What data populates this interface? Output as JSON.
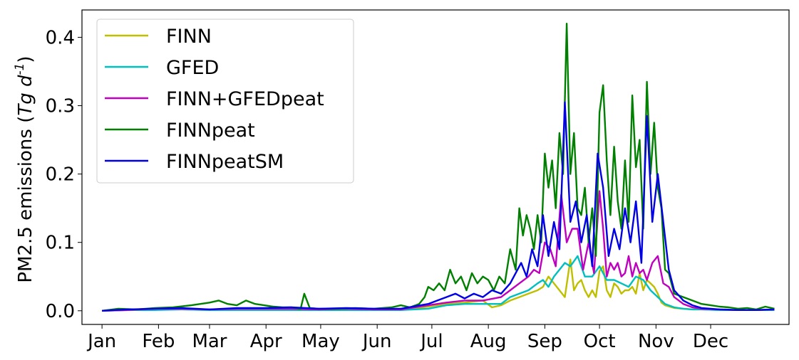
{
  "chart_data": {
    "type": "line",
    "title": "",
    "xlabel": "",
    "ylabel": "PM2.5 emissions (",
    "ylabel_italic": "Tg d",
    "ylabel_exp": "-1",
    "ylabel_close": ")",
    "ylim": [
      -0.02,
      0.44
    ],
    "yticks": [
      0.0,
      0.1,
      0.2,
      0.3,
      0.4
    ],
    "ytick_labels": [
      "0.0",
      "0.1",
      "0.2",
      "0.3",
      "0.4"
    ],
    "xlim": [
      -10,
      378
    ],
    "xticks": [
      1,
      32,
      60,
      91,
      121,
      152,
      182,
      213,
      244,
      274,
      305,
      335
    ],
    "xtick_labels": [
      "Jan",
      "Feb",
      "Mar",
      "Apr",
      "May",
      "Jun",
      "Jul",
      "Aug",
      "Sep",
      "Oct",
      "Nov",
      "Dec"
    ],
    "grid": false,
    "legend_position": "top-left",
    "series": [
      {
        "name": "FINN",
        "color": "#bfbf00",
        "x": [
          1,
          15,
          30,
          45,
          60,
          75,
          90,
          105,
          120,
          135,
          150,
          165,
          180,
          190,
          200,
          210,
          215,
          220,
          225,
          230,
          235,
          240,
          243,
          246,
          249,
          252,
          255,
          258,
          260,
          262,
          264,
          266,
          268,
          270,
          272,
          274,
          276,
          278,
          280,
          282,
          284,
          286,
          288,
          290,
          292,
          294,
          296,
          298,
          300,
          302,
          304,
          306,
          308,
          310,
          315,
          320,
          325,
          330,
          340,
          350,
          360,
          370
        ],
        "values": [
          0.0,
          0.001,
          0.002,
          0.002,
          0.001,
          0.002,
          0.001,
          0.002,
          0.001,
          0.002,
          0.001,
          0.001,
          0.006,
          0.01,
          0.012,
          0.015,
          0.005,
          0.008,
          0.015,
          0.02,
          0.025,
          0.03,
          0.035,
          0.05,
          0.04,
          0.03,
          0.02,
          0.075,
          0.03,
          0.04,
          0.045,
          0.03,
          0.02,
          0.03,
          0.02,
          0.058,
          0.065,
          0.03,
          0.02,
          0.04,
          0.035,
          0.025,
          0.03,
          0.03,
          0.035,
          0.025,
          0.055,
          0.03,
          0.045,
          0.04,
          0.035,
          0.025,
          0.012,
          0.008,
          0.004,
          0.003,
          0.002,
          0.002,
          0.001,
          0.001,
          0.001,
          0.002
        ]
      },
      {
        "name": "GFED",
        "color": "#00bfbf",
        "x": [
          1,
          15,
          30,
          45,
          60,
          75,
          90,
          105,
          120,
          135,
          150,
          165,
          180,
          190,
          200,
          210,
          220,
          225,
          230,
          235,
          240,
          243,
          246,
          249,
          252,
          255,
          258,
          262,
          266,
          270,
          274,
          278,
          282,
          286,
          290,
          294,
          298,
          302,
          306,
          310,
          315,
          320,
          325,
          330,
          340,
          350,
          360,
          370
        ],
        "values": [
          0.0,
          0.001,
          0.001,
          0.002,
          0.001,
          0.001,
          0.001,
          0.001,
          0.001,
          0.001,
          0.001,
          0.001,
          0.003,
          0.008,
          0.01,
          0.01,
          0.01,
          0.02,
          0.025,
          0.03,
          0.04,
          0.045,
          0.035,
          0.05,
          0.06,
          0.07,
          0.065,
          0.08,
          0.05,
          0.05,
          0.065,
          0.045,
          0.045,
          0.04,
          0.035,
          0.05,
          0.045,
          0.03,
          0.02,
          0.01,
          0.005,
          0.003,
          0.002,
          0.002,
          0.001,
          0.001,
          0.001,
          0.001
        ]
      },
      {
        "name": "FINN+GFEDpeat",
        "color": "#bf00bf",
        "x": [
          1,
          15,
          30,
          45,
          60,
          75,
          90,
          105,
          120,
          135,
          150,
          165,
          180,
          190,
          200,
          210,
          220,
          225,
          230,
          235,
          238,
          241,
          244,
          247,
          250,
          253,
          256,
          259,
          262,
          265,
          268,
          271,
          274,
          276,
          278,
          280,
          282,
          284,
          286,
          288,
          290,
          292,
          294,
          296,
          298,
          300,
          303,
          306,
          309,
          312,
          315,
          320,
          325,
          330,
          340,
          350,
          360,
          370
        ],
        "values": [
          0.0,
          0.001,
          0.003,
          0.003,
          0.002,
          0.003,
          0.003,
          0.003,
          0.002,
          0.003,
          0.002,
          0.002,
          0.008,
          0.012,
          0.015,
          0.015,
          0.02,
          0.03,
          0.04,
          0.05,
          0.06,
          0.055,
          0.1,
          0.09,
          0.065,
          0.17,
          0.1,
          0.12,
          0.12,
          0.06,
          0.1,
          0.055,
          0.175,
          0.12,
          0.05,
          0.07,
          0.06,
          0.07,
          0.05,
          0.055,
          0.08,
          0.05,
          0.07,
          0.055,
          0.06,
          0.045,
          0.07,
          0.08,
          0.04,
          0.035,
          0.02,
          0.01,
          0.005,
          0.003,
          0.002,
          0.001,
          0.001,
          0.002
        ]
      },
      {
        "name": "FINNpeat",
        "color": "#008000",
        "x": [
          1,
          10,
          20,
          30,
          40,
          50,
          55,
          60,
          65,
          70,
          75,
          80,
          85,
          90,
          95,
          100,
          105,
          110,
          112,
          115,
          120,
          130,
          140,
          150,
          160,
          165,
          170,
          175,
          178,
          180,
          183,
          186,
          189,
          192,
          195,
          198,
          201,
          204,
          207,
          210,
          213,
          216,
          219,
          222,
          225,
          228,
          230,
          232,
          234,
          236,
          238,
          240,
          242,
          244,
          246,
          248,
          250,
          252,
          254,
          256,
          258,
          260,
          262,
          264,
          266,
          268,
          270,
          272,
          274,
          276,
          278,
          280,
          282,
          284,
          286,
          288,
          290,
          292,
          294,
          296,
          298,
          300,
          302,
          304,
          306,
          308,
          310,
          312,
          315,
          320,
          325,
          330,
          335,
          340,
          345,
          350,
          355,
          360,
          365,
          370
        ],
        "values": [
          0.0,
          0.003,
          0.002,
          0.004,
          0.005,
          0.008,
          0.01,
          0.012,
          0.015,
          0.01,
          0.008,
          0.015,
          0.01,
          0.008,
          0.006,
          0.005,
          0.005,
          0.003,
          0.025,
          0.004,
          0.003,
          0.003,
          0.004,
          0.003,
          0.005,
          0.008,
          0.005,
          0.01,
          0.02,
          0.035,
          0.03,
          0.04,
          0.03,
          0.06,
          0.04,
          0.05,
          0.03,
          0.055,
          0.04,
          0.05,
          0.045,
          0.03,
          0.05,
          0.04,
          0.09,
          0.06,
          0.15,
          0.11,
          0.14,
          0.12,
          0.09,
          0.14,
          0.1,
          0.23,
          0.18,
          0.22,
          0.15,
          0.26,
          0.2,
          0.42,
          0.2,
          0.26,
          0.15,
          0.14,
          0.18,
          0.1,
          0.15,
          0.08,
          0.29,
          0.33,
          0.22,
          0.14,
          0.24,
          0.16,
          0.12,
          0.22,
          0.13,
          0.315,
          0.21,
          0.25,
          0.12,
          0.335,
          0.2,
          0.275,
          0.18,
          0.15,
          0.06,
          0.055,
          0.025,
          0.02,
          0.015,
          0.01,
          0.008,
          0.006,
          0.005,
          0.003,
          0.004,
          0.002,
          0.006,
          0.003
        ]
      },
      {
        "name": "FINNpeatSM",
        "color": "#0000e6",
        "x": [
          1,
          15,
          30,
          45,
          60,
          75,
          90,
          105,
          120,
          135,
          150,
          165,
          180,
          185,
          190,
          195,
          200,
          205,
          210,
          215,
          220,
          225,
          228,
          231,
          234,
          237,
          240,
          243,
          246,
          249,
          252,
          255,
          258,
          261,
          264,
          267,
          270,
          273,
          276,
          279,
          282,
          285,
          288,
          291,
          294,
          297,
          300,
          303,
          306,
          309,
          312,
          315,
          320,
          325,
          330,
          340,
          350,
          360,
          370
        ],
        "values": [
          0.0,
          0.002,
          0.003,
          0.004,
          0.002,
          0.004,
          0.004,
          0.005,
          0.003,
          0.004,
          0.003,
          0.003,
          0.01,
          0.015,
          0.02,
          0.025,
          0.018,
          0.025,
          0.02,
          0.03,
          0.025,
          0.04,
          0.055,
          0.07,
          0.05,
          0.09,
          0.065,
          0.14,
          0.08,
          0.13,
          0.09,
          0.305,
          0.13,
          0.16,
          0.1,
          0.14,
          0.065,
          0.23,
          0.18,
          0.08,
          0.12,
          0.09,
          0.15,
          0.1,
          0.16,
          0.07,
          0.285,
          0.13,
          0.2,
          0.13,
          0.06,
          0.03,
          0.015,
          0.008,
          0.004,
          0.002,
          0.001,
          0.001,
          0.002
        ]
      }
    ]
  }
}
